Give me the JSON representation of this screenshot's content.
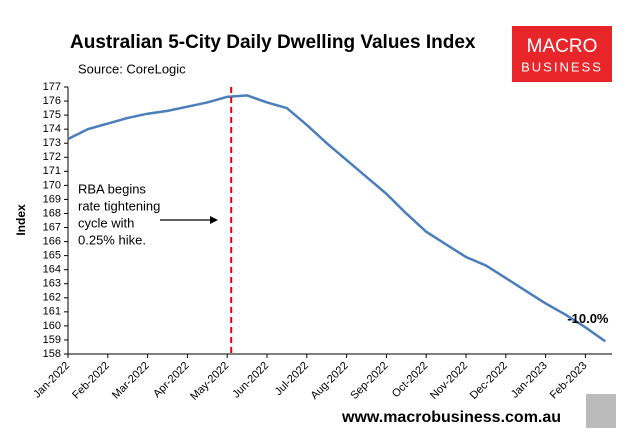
{
  "chart_data": {
    "type": "line",
    "title": "Australian 5-City Daily Dwelling Values Index",
    "subtitle": "Source: CoreLogic",
    "y_label": "Index",
    "categories": [
      "Jan-2022",
      null,
      "Feb-2022",
      null,
      "Mar-2022",
      null,
      "Apr-2022",
      null,
      "May-2022",
      null,
      "Jun-2022",
      null,
      "Jul-2022",
      null,
      "Aug-2022",
      null,
      "Sep-2022",
      null,
      "Oct-2022",
      null,
      "Nov-2022",
      null,
      "Dec-2022",
      null,
      "Jan-2023",
      null,
      "Feb-2023",
      null
    ],
    "series": [
      {
        "name": "Index",
        "color": "#4a7ebb",
        "values": [
          173.3,
          174.0,
          174.4,
          174.8,
          175.1,
          175.3,
          175.6,
          175.9,
          176.3,
          176.4,
          175.9,
          175.5,
          174.3,
          173.0,
          171.8,
          170.6,
          169.4,
          168.0,
          166.7,
          165.8,
          164.9,
          164.3,
          163.4,
          162.5,
          161.6,
          160.8,
          159.9,
          158.9
        ]
      }
    ],
    "ylim": [
      158,
      177
    ],
    "yticks": [
      158,
      159,
      160,
      161,
      162,
      163,
      164,
      165,
      166,
      167,
      168,
      169,
      170,
      171,
      172,
      173,
      174,
      175,
      176,
      177
    ],
    "annotation": {
      "lines": [
        "RBA begins",
        "rate tightening",
        "cycle with",
        "0.25% hike."
      ]
    },
    "end_label": "-10.0%",
    "logo": [
      "MACRO",
      "BUSINESS"
    ],
    "footer": "www.macrobusiness.com.au"
  }
}
